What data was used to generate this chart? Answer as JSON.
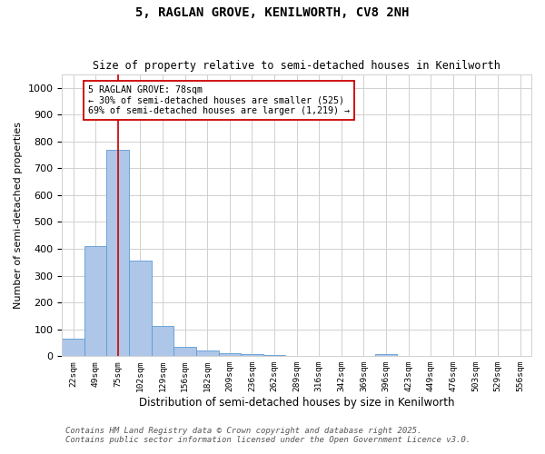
{
  "title": "5, RAGLAN GROVE, KENILWORTH, CV8 2NH",
  "subtitle": "Size of property relative to semi-detached houses in Kenilworth",
  "xlabel": "Distribution of semi-detached houses by size in Kenilworth",
  "ylabel": "Number of semi-detached properties",
  "bins": [
    "22sqm",
    "49sqm",
    "75sqm",
    "102sqm",
    "129sqm",
    "156sqm",
    "182sqm",
    "209sqm",
    "236sqm",
    "262sqm",
    "289sqm",
    "316sqm",
    "342sqm",
    "369sqm",
    "396sqm",
    "423sqm",
    "449sqm",
    "476sqm",
    "503sqm",
    "529sqm",
    "556sqm"
  ],
  "values": [
    65,
    410,
    770,
    355,
    113,
    33,
    20,
    10,
    7,
    5,
    0,
    0,
    0,
    0,
    8,
    0,
    0,
    0,
    0,
    0,
    0
  ],
  "bar_color": "#aec6e8",
  "bar_edge_color": "#5b9bd5",
  "property_bin_index": 2,
  "annotation_title": "5 RAGLAN GROVE: 78sqm",
  "annotation_line1": "← 30% of semi-detached houses are smaller (525)",
  "annotation_line2": "69% of semi-detached houses are larger (1,219) →",
  "annotation_box_color": "#ffffff",
  "annotation_box_edge": "#cc0000",
  "vline_color": "#cc0000",
  "ylim": [
    0,
    1050
  ],
  "yticks": [
    0,
    100,
    200,
    300,
    400,
    500,
    600,
    700,
    800,
    900,
    1000
  ],
  "footnote1": "Contains HM Land Registry data © Crown copyright and database right 2025.",
  "footnote2": "Contains public sector information licensed under the Open Government Licence v3.0.",
  "background_color": "#ffffff",
  "grid_color": "#d0d0d0"
}
